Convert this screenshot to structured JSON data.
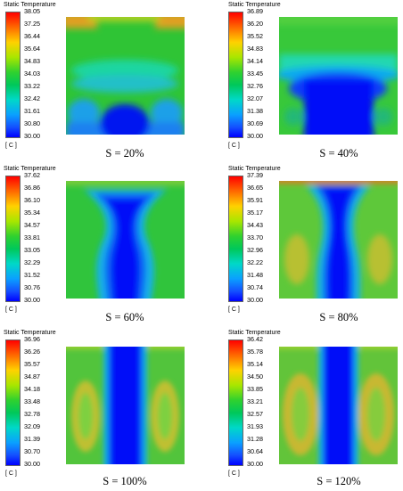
{
  "colors": {
    "hot": "#ff2200",
    "warm": "#e6b800",
    "mid": "#3cc83c",
    "cool": "#00c8c8",
    "cold": "#0000ff"
  },
  "panels": [
    {
      "title": "Static Temperature",
      "unit": "[ C ]",
      "label": "S = 20%",
      "ticks": [
        "38.05",
        "37.25",
        "36.44",
        "35.64",
        "34.83",
        "34.03",
        "33.22",
        "32.42",
        "31.61",
        "30.80",
        "30.00"
      ]
    },
    {
      "title": "Static Temperature",
      "unit": "[ C ]",
      "label": "S = 40%",
      "ticks": [
        "36.89",
        "36.20",
        "35.52",
        "34.83",
        "34.14",
        "33.45",
        "32.76",
        "32.07",
        "31.38",
        "30.69",
        "30.00"
      ]
    },
    {
      "title": "Static Temperature",
      "unit": "[ C ]",
      "label": "S = 60%",
      "ticks": [
        "37.62",
        "36.86",
        "36.10",
        "35.34",
        "34.57",
        "33.81",
        "33.05",
        "32.29",
        "31.52",
        "30.76",
        "30.00"
      ]
    },
    {
      "title": "Static Temperature",
      "unit": "[ C ]",
      "label": "S = 80%",
      "ticks": [
        "37.39",
        "36.65",
        "35.91",
        "35.17",
        "34.43",
        "33.70",
        "32.96",
        "32.22",
        "31.48",
        "30.74",
        "30.00"
      ]
    },
    {
      "title": "Static Temperature",
      "unit": "[ C ]",
      "label": "S = 100%",
      "ticks": [
        "36.96",
        "36.26",
        "35.57",
        "34.87",
        "34.18",
        "33.48",
        "32.78",
        "32.09",
        "31.39",
        "30.70",
        "30.00"
      ]
    },
    {
      "title": "Static Temperature",
      "unit": "[ C ]",
      "label": "S = 120%",
      "ticks": [
        "36.42",
        "35.78",
        "35.14",
        "34.50",
        "33.85",
        "33.21",
        "32.57",
        "31.93",
        "31.28",
        "30.64",
        "30.00"
      ]
    }
  ]
}
